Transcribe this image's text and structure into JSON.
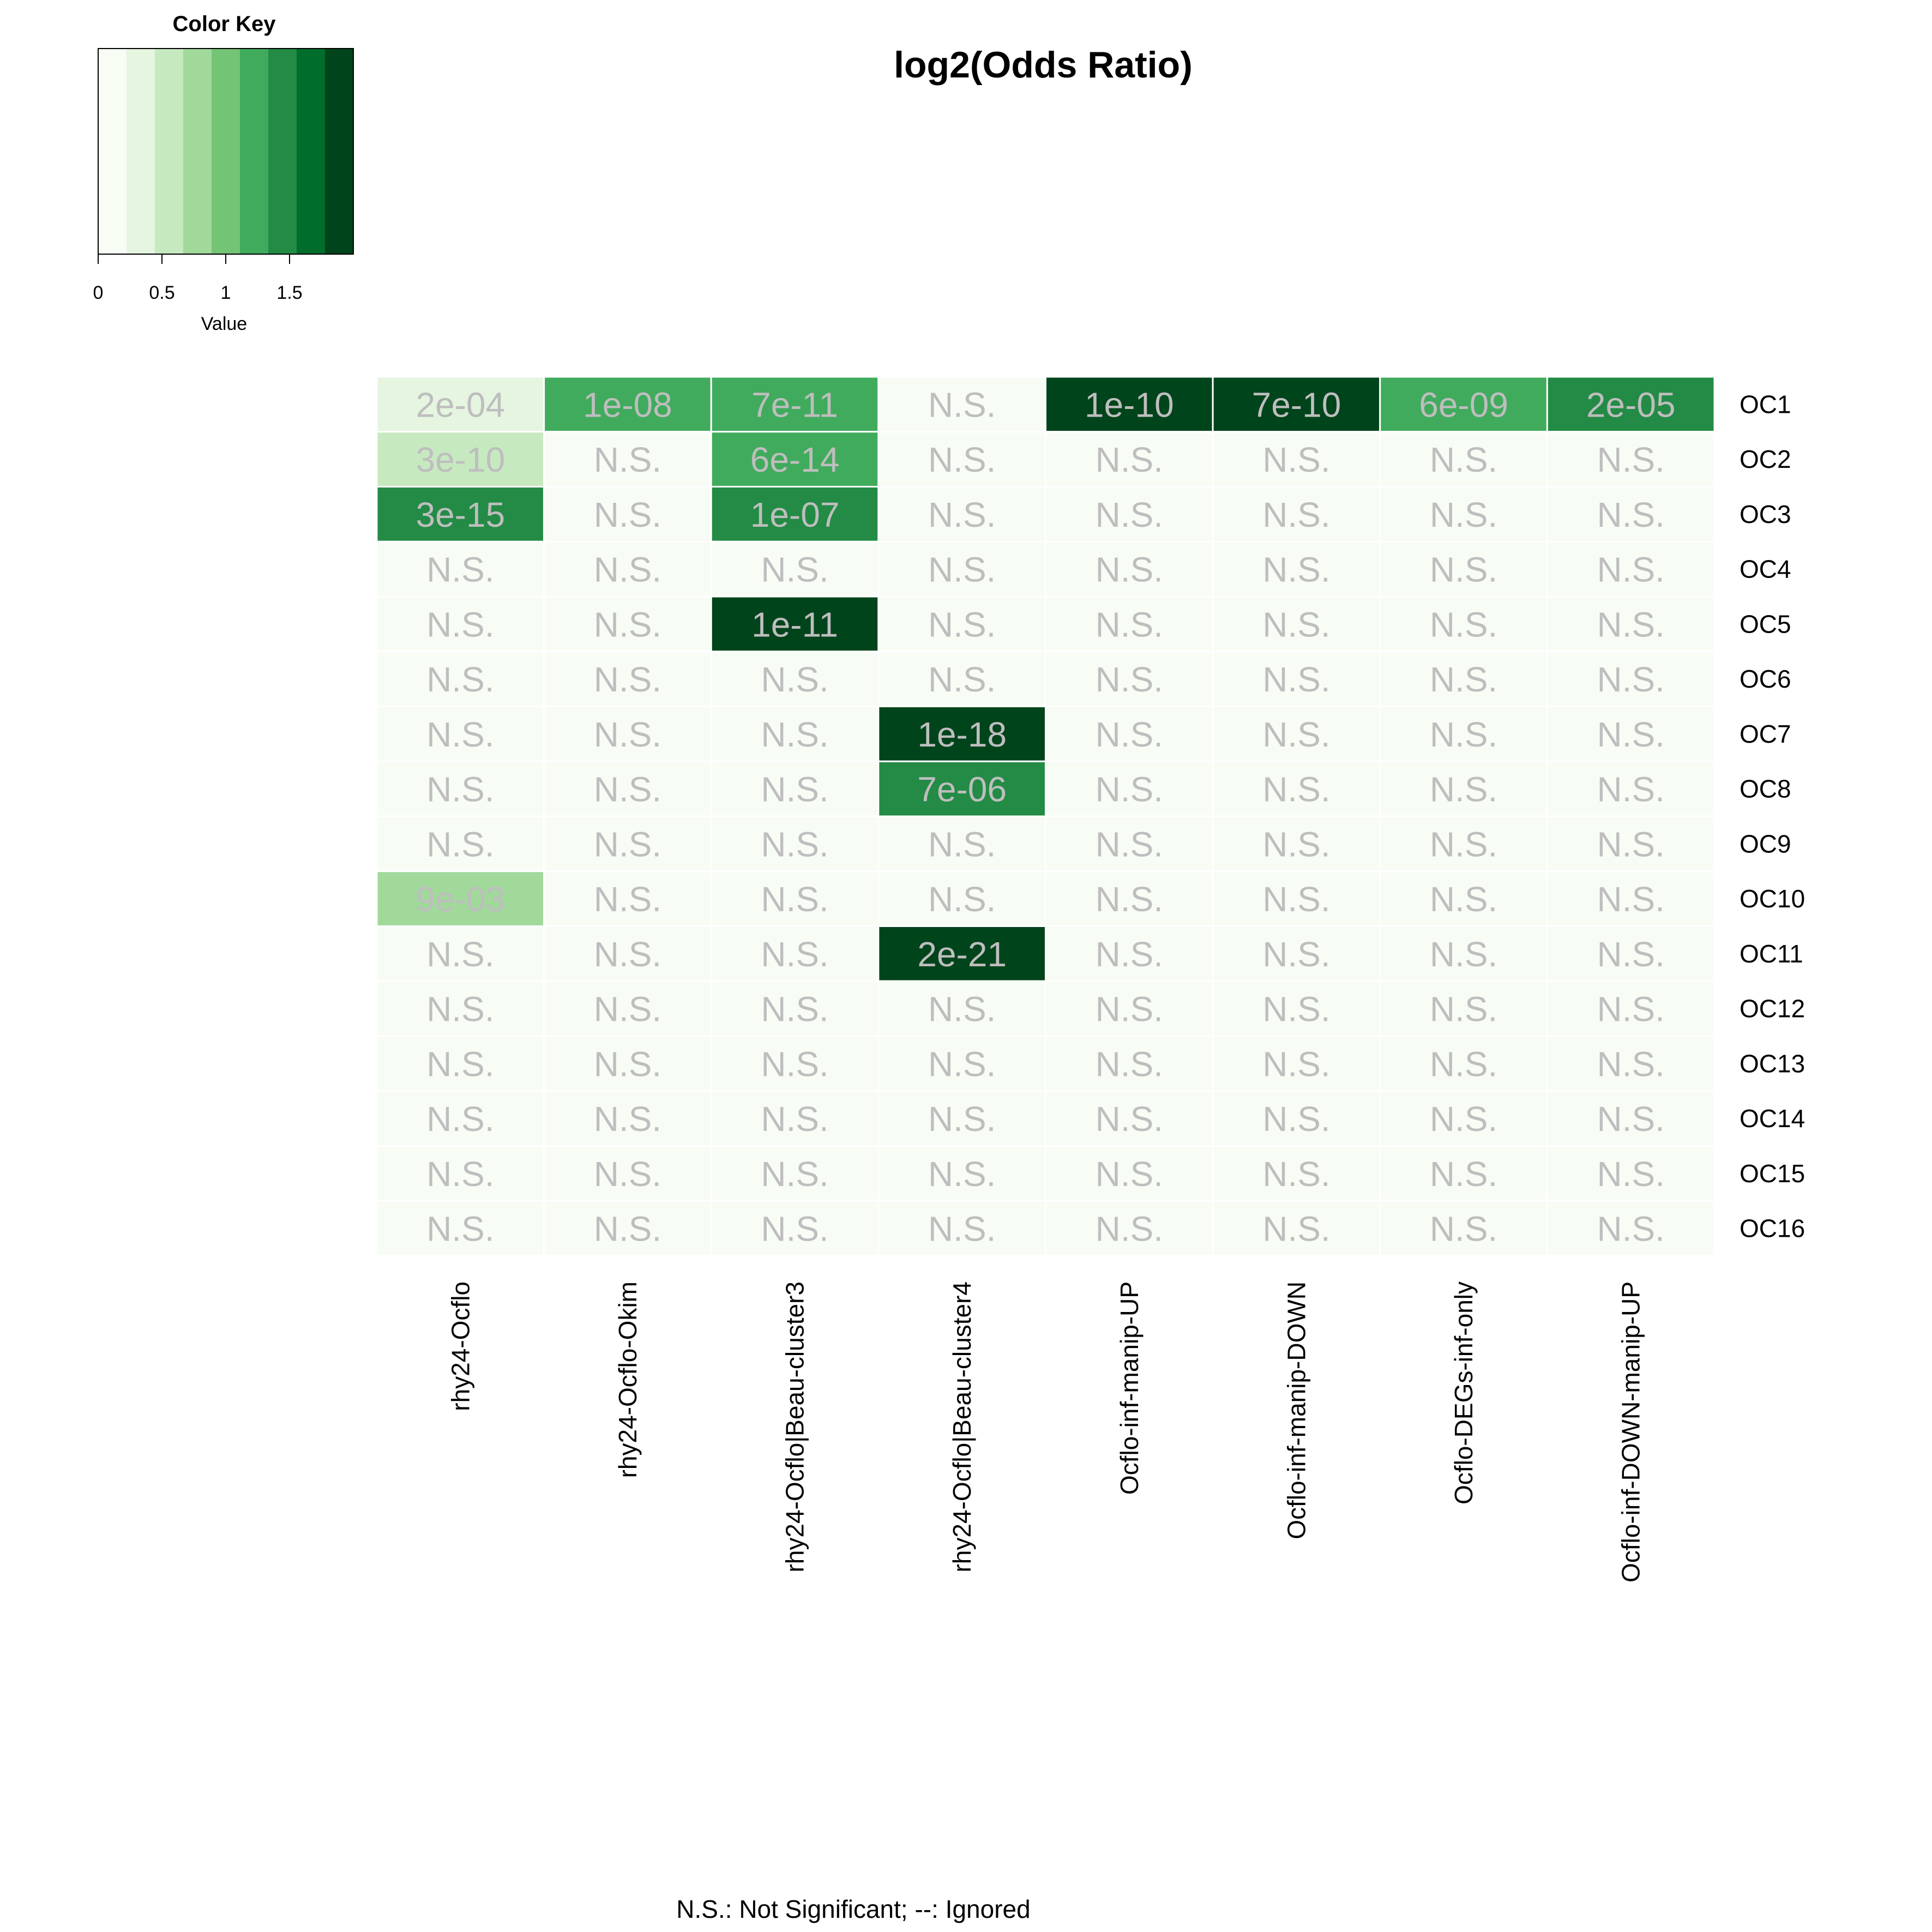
{
  "chart_data": {
    "type": "heatmap",
    "title": "log2(Odds Ratio)",
    "footnote": "N.S.: Not Significant; --: Ignored",
    "color_key": {
      "title": "Color Key",
      "xlabel": "Value",
      "ticks": [
        "0",
        "0.5",
        "1",
        "1.5"
      ],
      "tick_values": [
        0,
        0.5,
        1,
        1.5
      ],
      "range": [
        0,
        2
      ],
      "bin_colors": [
        "#f7fcf5",
        "#e5f5e0",
        "#c7e9c0",
        "#a1d99b",
        "#74c476",
        "#41ab5d",
        "#238b45",
        "#006d2c",
        "#00441b"
      ]
    },
    "columns": [
      "rhy24-Ocflo",
      "rhy24-Ocflo-Okim",
      "rhy24-Ocflo|Beau-cluster3",
      "rhy24-Ocflo|Beau-cluster4",
      "Ocflo-inf-manip-UP",
      "Ocflo-inf-manip-DOWN",
      "Ocflo-DEGs-inf-only",
      "Ocflo-inf-DOWN-manip-UP"
    ],
    "rows": [
      "OC1",
      "OC2",
      "OC3",
      "OC4",
      "OC5",
      "OC6",
      "OC7",
      "OC8",
      "OC9",
      "OC10",
      "OC11",
      "OC12",
      "OC13",
      "OC14",
      "OC15",
      "OC16"
    ],
    "cell_labels": [
      [
        "2e-04",
        "1e-08",
        "7e-11",
        "N.S.",
        "1e-10",
        "7e-10",
        "6e-09",
        "2e-05"
      ],
      [
        "3e-10",
        "N.S.",
        "6e-14",
        "N.S.",
        "N.S.",
        "N.S.",
        "N.S.",
        "N.S."
      ],
      [
        "3e-15",
        "N.S.",
        "1e-07",
        "N.S.",
        "N.S.",
        "N.S.",
        "N.S.",
        "N.S."
      ],
      [
        "N.S.",
        "N.S.",
        "N.S.",
        "N.S.",
        "N.S.",
        "N.S.",
        "N.S.",
        "N.S."
      ],
      [
        "N.S.",
        "N.S.",
        "1e-11",
        "N.S.",
        "N.S.",
        "N.S.",
        "N.S.",
        "N.S."
      ],
      [
        "N.S.",
        "N.S.",
        "N.S.",
        "N.S.",
        "N.S.",
        "N.S.",
        "N.S.",
        "N.S."
      ],
      [
        "N.S.",
        "N.S.",
        "N.S.",
        "1e-18",
        "N.S.",
        "N.S.",
        "N.S.",
        "N.S."
      ],
      [
        "N.S.",
        "N.S.",
        "N.S.",
        "7e-06",
        "N.S.",
        "N.S.",
        "N.S.",
        "N.S."
      ],
      [
        "N.S.",
        "N.S.",
        "N.S.",
        "N.S.",
        "N.S.",
        "N.S.",
        "N.S.",
        "N.S."
      ],
      [
        "9e-03",
        "N.S.",
        "N.S.",
        "N.S.",
        "N.S.",
        "N.S.",
        "N.S.",
        "N.S."
      ],
      [
        "N.S.",
        "N.S.",
        "N.S.",
        "2e-21",
        "N.S.",
        "N.S.",
        "N.S.",
        "N.S."
      ],
      [
        "N.S.",
        "N.S.",
        "N.S.",
        "N.S.",
        "N.S.",
        "N.S.",
        "N.S.",
        "N.S."
      ],
      [
        "N.S.",
        "N.S.",
        "N.S.",
        "N.S.",
        "N.S.",
        "N.S.",
        "N.S.",
        "N.S."
      ],
      [
        "N.S.",
        "N.S.",
        "N.S.",
        "N.S.",
        "N.S.",
        "N.S.",
        "N.S.",
        "N.S."
      ],
      [
        "N.S.",
        "N.S.",
        "N.S.",
        "N.S.",
        "N.S.",
        "N.S.",
        "N.S.",
        "N.S."
      ],
      [
        "N.S.",
        "N.S.",
        "N.S.",
        "N.S.",
        "N.S.",
        "N.S.",
        "N.S.",
        "N.S."
      ]
    ],
    "values": [
      [
        0.35,
        1.15,
        1.15,
        0,
        1.85,
        1.85,
        1.15,
        1.4
      ],
      [
        0.55,
        0,
        1.15,
        0,
        0,
        0,
        0,
        0
      ],
      [
        1.4,
        0,
        1.4,
        0,
        0,
        0,
        0,
        0
      ],
      [
        0,
        0,
        0,
        0,
        0,
        0,
        0,
        0
      ],
      [
        0,
        0,
        1.9,
        0,
        0,
        0,
        0,
        0
      ],
      [
        0,
        0,
        0,
        0,
        0,
        0,
        0,
        0
      ],
      [
        0,
        0,
        0,
        1.9,
        0,
        0,
        0,
        0
      ],
      [
        0,
        0,
        0,
        1.4,
        0,
        0,
        0,
        0
      ],
      [
        0,
        0,
        0,
        0,
        0,
        0,
        0,
        0
      ],
      [
        0.75,
        0,
        0,
        0,
        0,
        0,
        0,
        0
      ],
      [
        0,
        0,
        0,
        1.9,
        0,
        0,
        0,
        0
      ],
      [
        0,
        0,
        0,
        0,
        0,
        0,
        0,
        0
      ],
      [
        0,
        0,
        0,
        0,
        0,
        0,
        0,
        0
      ],
      [
        0,
        0,
        0,
        0,
        0,
        0,
        0,
        0
      ],
      [
        0,
        0,
        0,
        0,
        0,
        0,
        0,
        0
      ],
      [
        0,
        0,
        0,
        0,
        0,
        0,
        0,
        0
      ]
    ],
    "label_color": "#bebebe"
  }
}
